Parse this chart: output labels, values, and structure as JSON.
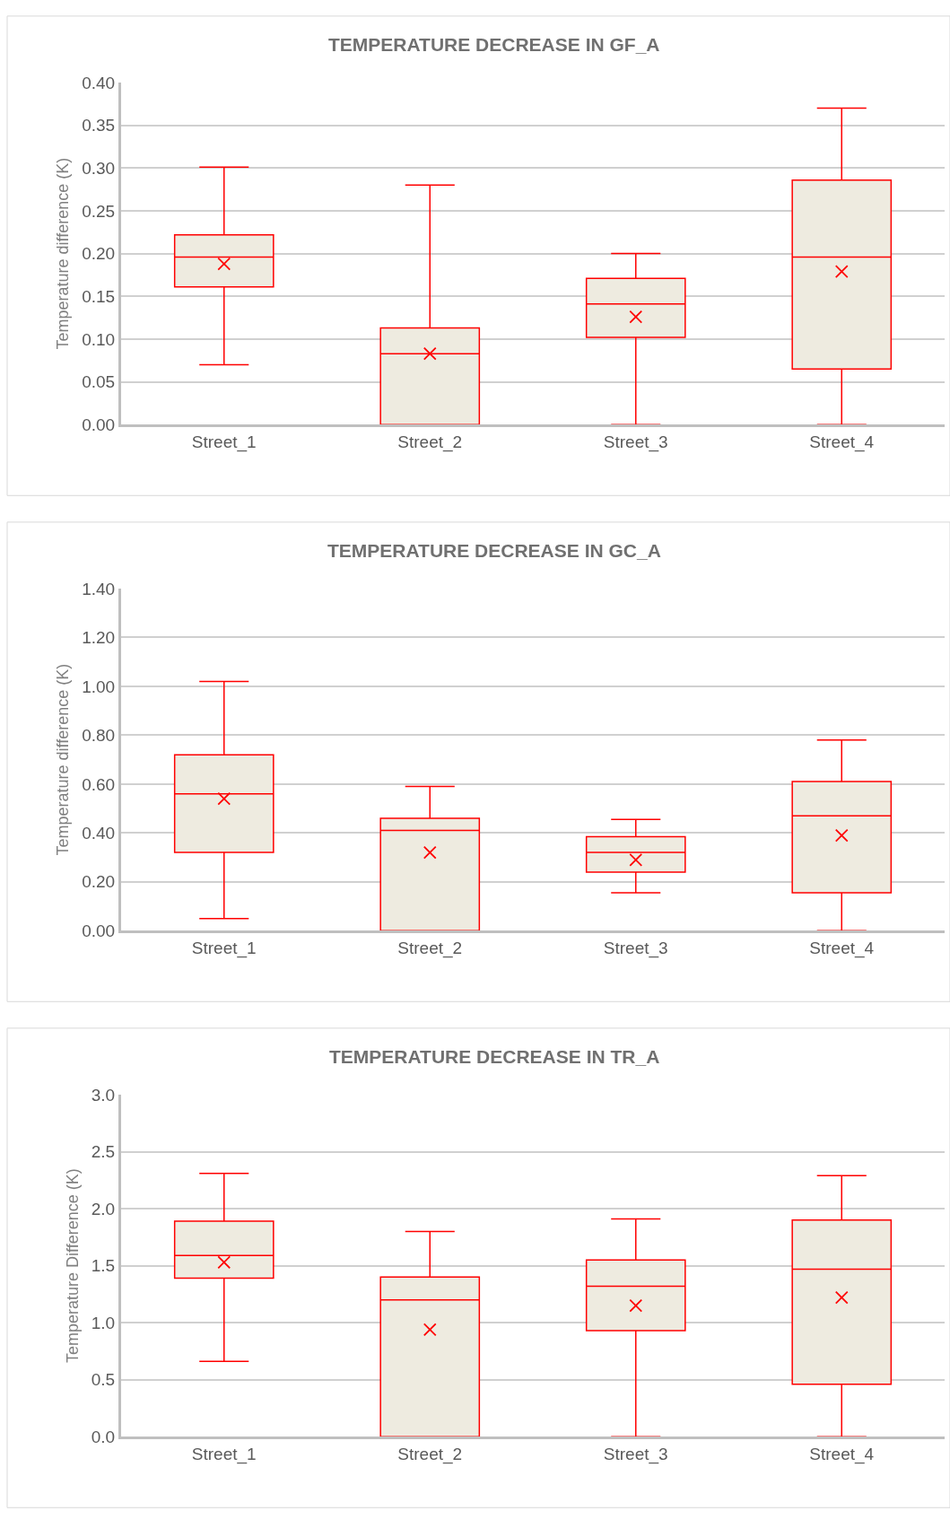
{
  "chart_data": [
    {
      "type": "box",
      "title": "TEMPERATURE DECREASE IN GF_A",
      "ylabel": "Temperature difference (K)",
      "categories": [
        "Street_1",
        "Street_2",
        "Street_3",
        "Street_4"
      ],
      "ylim": [
        0,
        0.4
      ],
      "grid": "y",
      "yticks": [
        {
          "value": 0,
          "label": "0.00"
        },
        {
          "value": 0.05,
          "label": "0.05"
        },
        {
          "value": 0.1,
          "label": "0.10"
        },
        {
          "value": 0.15,
          "label": "0.15"
        },
        {
          "value": 0.2,
          "label": "0.20"
        },
        {
          "value": 0.25,
          "label": "0.25"
        },
        {
          "value": 0.3,
          "label": "0.30"
        },
        {
          "value": 0.35,
          "label": "0.35"
        },
        {
          "value": 0.4,
          "label": "0.40"
        }
      ],
      "series": [
        {
          "color": "#ff0000",
          "boxes": [
            {
              "low": 0.07,
              "q1": 0.161,
              "median": 0.196,
              "q3": 0.222,
              "high": 0.301,
              "mean": 0.188
            },
            {
              "low": 0,
              "q1": 0,
              "median": 0.083,
              "q3": 0.113,
              "high": 0.28,
              "mean": 0.083
            },
            {
              "low": 0,
              "q1": 0.102,
              "median": 0.141,
              "q3": 0.171,
              "high": 0.2,
              "mean": 0.126
            },
            {
              "low": 0,
              "q1": 0.065,
              "median": 0.196,
              "q3": 0.286,
              "high": 0.37,
              "mean": 0.179
            }
          ]
        }
      ]
    },
    {
      "type": "box",
      "title": "TEMPERATURE DECREASE IN GC_A",
      "ylabel": "Temperature difference (K)",
      "categories": [
        "Street_1",
        "Street_2",
        "Street_3",
        "Street_4"
      ],
      "ylim": [
        0,
        1.4
      ],
      "grid": "y",
      "yticks": [
        {
          "value": 0,
          "label": "0.00"
        },
        {
          "value": 0.2,
          "label": "0.20"
        },
        {
          "value": 0.4,
          "label": "0.40"
        },
        {
          "value": 0.6,
          "label": "0.60"
        },
        {
          "value": 0.8,
          "label": "0.80"
        },
        {
          "value": 1.0,
          "label": "1.00"
        },
        {
          "value": 1.2,
          "label": "1.20"
        },
        {
          "value": 1.4,
          "label": "1.40"
        }
      ],
      "series": [
        {
          "color": "#ff0000",
          "boxes": [
            {
              "low": 0.05,
              "q1": 0.32,
              "median": 0.56,
              "q3": 0.72,
              "high": 1.02,
              "mean": 0.54
            },
            {
              "low": 0,
              "q1": 0,
              "median": 0.41,
              "q3": 0.46,
              "high": 0.59,
              "mean": 0.32
            },
            {
              "low": 0.155,
              "q1": 0.24,
              "median": 0.32,
              "q3": 0.385,
              "high": 0.455,
              "mean": 0.29
            },
            {
              "low": 0,
              "q1": 0.155,
              "median": 0.47,
              "q3": 0.61,
              "high": 0.78,
              "mean": 0.39
            }
          ]
        }
      ]
    },
    {
      "type": "box",
      "title": "TEMPERATURE DECREASE IN TR_A",
      "ylabel": "Temperature Difference (K)",
      "categories": [
        "Street_1",
        "Street_2",
        "Street_3",
        "Street_4"
      ],
      "ylim": [
        0,
        3.0
      ],
      "grid": "y",
      "yticks": [
        {
          "value": 0,
          "label": "0.0"
        },
        {
          "value": 0.5,
          "label": "0.5"
        },
        {
          "value": 1.0,
          "label": "1.0"
        },
        {
          "value": 1.5,
          "label": "1.5"
        },
        {
          "value": 2.0,
          "label": "2.0"
        },
        {
          "value": 2.5,
          "label": "2.5"
        },
        {
          "value": 3.0,
          "label": "3.0"
        }
      ],
      "series": [
        {
          "color": "#ff0000",
          "boxes": [
            {
              "low": 0.66,
              "q1": 1.39,
              "median": 1.59,
              "q3": 1.89,
              "high": 2.31,
              "mean": 1.53
            },
            {
              "low": 0,
              "q1": 0,
              "median": 1.2,
              "q3": 1.4,
              "high": 1.8,
              "mean": 0.94
            },
            {
              "low": 0,
              "q1": 0.93,
              "median": 1.32,
              "q3": 1.55,
              "high": 1.91,
              "mean": 1.15
            },
            {
              "low": 0,
              "q1": 0.46,
              "median": 1.47,
              "q3": 1.9,
              "high": 2.29,
              "mean": 1.22
            }
          ]
        }
      ]
    }
  ]
}
